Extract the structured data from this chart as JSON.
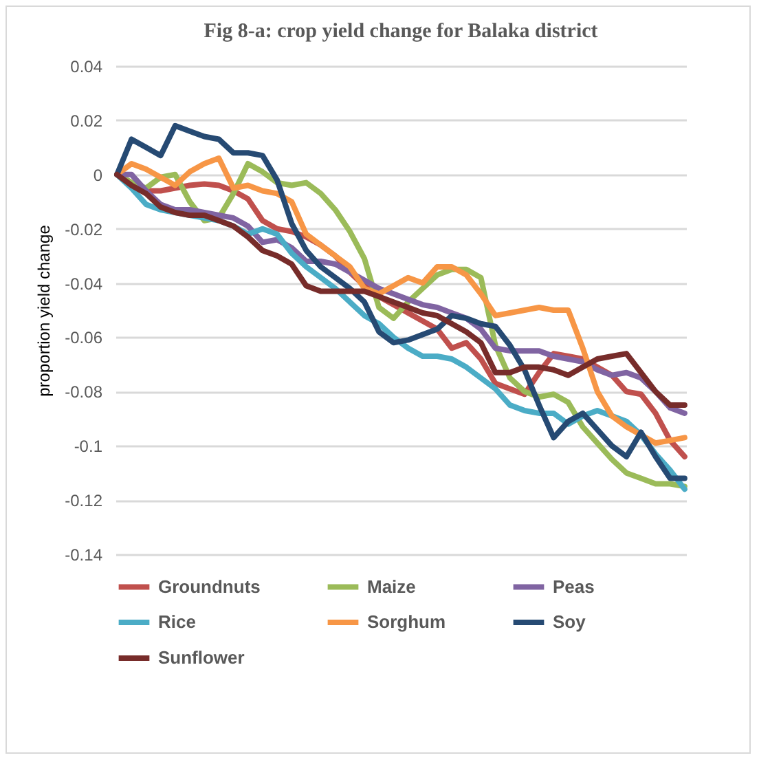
{
  "chart_data": {
    "type": "line",
    "title": "Fig 8-a: crop yield change for Balaka district",
    "ylabel": "proportion yield change",
    "categories": [
      null,
      null,
      null,
      null,
      null,
      null,
      null,
      null,
      null,
      null,
      null,
      null,
      null,
      null,
      null,
      null,
      null,
      null,
      null,
      null,
      null,
      null,
      null,
      null,
      null,
      null,
      null,
      null,
      null,
      null,
      null,
      null,
      null,
      null,
      null,
      null,
      null,
      null,
      null,
      null
    ],
    "series": [
      {
        "name": "Groundnuts",
        "color": "#c0504d",
        "values": [
          0,
          -0.003,
          -0.006,
          -0.006,
          -0.005,
          -0.004,
          -0.0035,
          -0.004,
          -0.006,
          -0.009,
          -0.017,
          -0.02,
          -0.021,
          -0.023,
          -0.026,
          -0.03,
          -0.036,
          -0.041,
          -0.045,
          -0.048,
          -0.051,
          -0.054,
          -0.057,
          -0.064,
          -0.062,
          -0.068,
          -0.077,
          -0.079,
          -0.081,
          -0.073,
          -0.066,
          -0.067,
          -0.068,
          -0.071,
          -0.074,
          -0.08,
          -0.081,
          -0.088,
          -0.098,
          -0.104
        ]
      },
      {
        "name": "Maize",
        "color": "#9bbb59",
        "values": [
          0,
          -0.003,
          -0.005,
          -0.001,
          0,
          -0.01,
          -0.017,
          -0.016,
          -0.007,
          0.004,
          0.001,
          -0.003,
          -0.004,
          -0.003,
          -0.007,
          -0.013,
          -0.021,
          -0.031,
          -0.049,
          -0.053,
          -0.047,
          -0.042,
          -0.037,
          -0.035,
          -0.035,
          -0.038,
          -0.063,
          -0.075,
          -0.08,
          -0.082,
          -0.081,
          -0.084,
          -0.093,
          -0.099,
          -0.105,
          -0.11,
          -0.112,
          -0.114,
          -0.114,
          -0.115
        ]
      },
      {
        "name": "Peas",
        "color": "#8064a2",
        "values": [
          0,
          0,
          -0.006,
          -0.011,
          -0.013,
          -0.013,
          -0.014,
          -0.015,
          -0.016,
          -0.019,
          -0.025,
          -0.024,
          -0.027,
          -0.032,
          -0.032,
          -0.033,
          -0.036,
          -0.039,
          -0.042,
          -0.044,
          -0.046,
          -0.048,
          -0.049,
          -0.051,
          -0.053,
          -0.057,
          -0.064,
          -0.065,
          -0.065,
          -0.065,
          -0.067,
          -0.068,
          -0.069,
          -0.072,
          -0.074,
          -0.073,
          -0.075,
          -0.08,
          -0.086,
          -0.088
        ]
      },
      {
        "name": "Rice",
        "color": "#4bacc6",
        "values": [
          0,
          -0.005,
          -0.011,
          -0.013,
          -0.014,
          -0.015,
          -0.016,
          -0.017,
          -0.019,
          -0.022,
          -0.02,
          -0.022,
          -0.029,
          -0.034,
          -0.038,
          -0.042,
          -0.047,
          -0.052,
          -0.055,
          -0.06,
          -0.064,
          -0.067,
          -0.067,
          -0.068,
          -0.071,
          -0.075,
          -0.079,
          -0.085,
          -0.087,
          -0.088,
          -0.088,
          -0.092,
          -0.089,
          -0.087,
          -0.089,
          -0.091,
          -0.096,
          -0.103,
          -0.109,
          -0.116
        ]
      },
      {
        "name": "Sorghum",
        "color": "#f79646",
        "values": [
          0,
          0.004,
          0.002,
          -0.001,
          -0.004,
          0.001,
          0.004,
          0.006,
          -0.005,
          -0.004,
          -0.006,
          -0.007,
          -0.01,
          -0.022,
          -0.026,
          -0.03,
          -0.034,
          -0.042,
          -0.044,
          -0.041,
          -0.038,
          -0.04,
          -0.034,
          -0.034,
          -0.037,
          -0.044,
          -0.052,
          -0.051,
          -0.05,
          -0.049,
          -0.05,
          -0.05,
          -0.064,
          -0.08,
          -0.089,
          -0.093,
          -0.096,
          -0.099,
          -0.098,
          -0.097
        ]
      },
      {
        "name": "Soy",
        "color": "#264a73",
        "values": [
          0,
          0.013,
          0.01,
          0.007,
          0.018,
          0.016,
          0.014,
          0.013,
          0.008,
          0.008,
          0.007,
          -0.002,
          -0.018,
          -0.028,
          -0.034,
          -0.038,
          -0.042,
          -0.047,
          -0.058,
          -0.062,
          -0.061,
          -0.059,
          -0.057,
          -0.052,
          -0.053,
          -0.055,
          -0.056,
          -0.063,
          -0.072,
          -0.085,
          -0.097,
          -0.091,
          -0.088,
          -0.094,
          -0.1,
          -0.104,
          -0.095,
          -0.104,
          -0.112,
          -0.112
        ]
      },
      {
        "name": "Sunflower",
        "color": "#772c2a",
        "values": [
          0,
          -0.004,
          -0.007,
          -0.012,
          -0.014,
          -0.015,
          -0.015,
          -0.017,
          -0.019,
          -0.023,
          -0.028,
          -0.03,
          -0.033,
          -0.041,
          -0.043,
          -0.043,
          -0.043,
          -0.043,
          -0.045,
          -0.047,
          -0.049,
          -0.051,
          -0.052,
          -0.055,
          -0.058,
          -0.062,
          -0.073,
          -0.073,
          -0.071,
          -0.071,
          -0.072,
          -0.074,
          -0.071,
          -0.068,
          -0.067,
          -0.066,
          -0.073,
          -0.08,
          -0.085,
          -0.085
        ]
      }
    ],
    "ylim": [
      -0.14,
      0.04
    ],
    "yticks": [
      -0.14,
      -0.12,
      -0.1,
      -0.08,
      -0.06,
      -0.04,
      -0.02,
      0,
      0.02,
      0.04
    ],
    "grid": "y",
    "legend": "bottom"
  }
}
